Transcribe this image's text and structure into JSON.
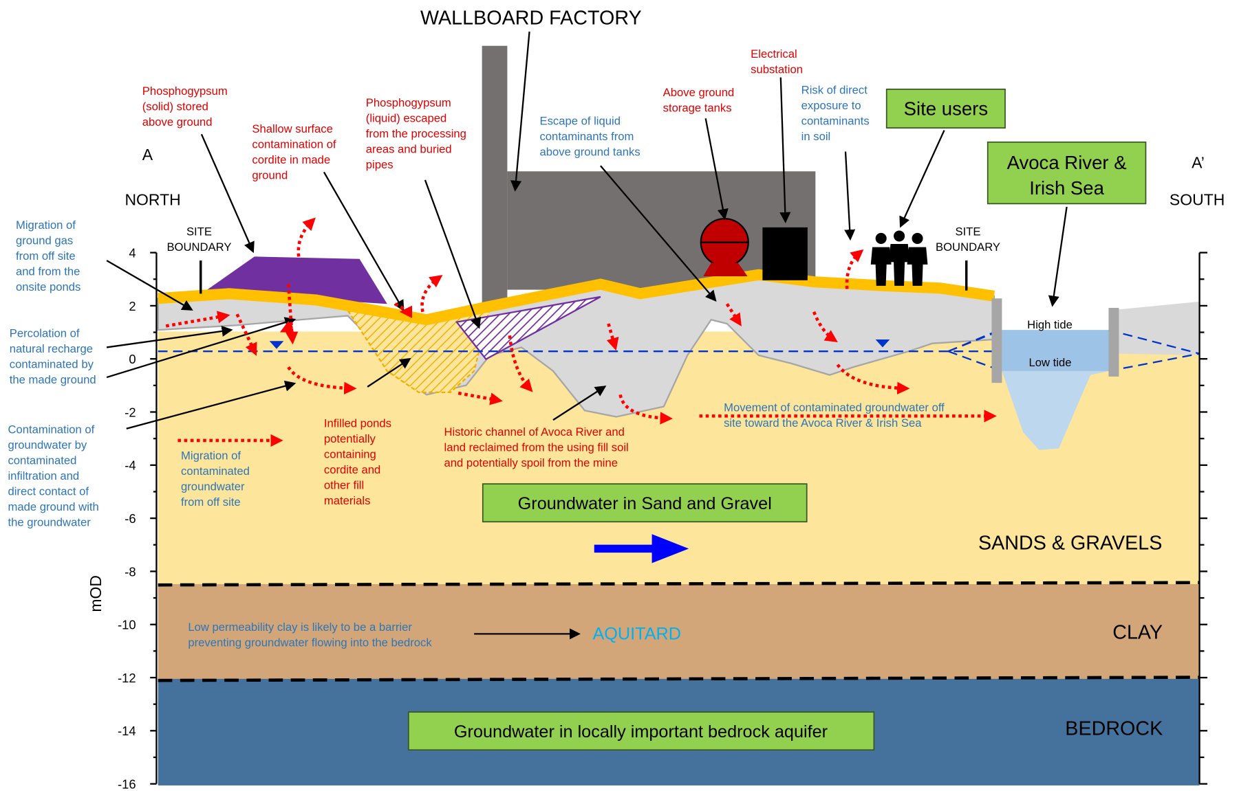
{
  "title": "WALLBOARD FACTORY",
  "labels": {
    "a": {
      "lines": [
        "A"
      ]
    },
    "north": {
      "lines": [
        "NORTH"
      ]
    },
    "a_prime": {
      "lines": [
        "A’"
      ]
    },
    "south": {
      "lines": [
        "SOUTH"
      ]
    },
    "site_boundary_left": {
      "lines": [
        "SITE",
        "BOUNDARY"
      ]
    },
    "site_boundary_right": {
      "lines": [
        "SITE",
        "BOUNDARY"
      ]
    },
    "phosphogypsum_solid": {
      "lines": [
        "Phosphogypsum",
        "(solid)  stored",
        "above ground"
      ]
    },
    "shallow_surface": {
      "lines": [
        "Shallow surface",
        "contamination of",
        "cordite in made",
        "ground"
      ]
    },
    "phosphogypsum_liquid": {
      "lines": [
        "Phosphogypsum",
        "(liquid) escaped",
        "from the processing",
        "areas and buried",
        "pipes"
      ]
    },
    "escape_liquid": {
      "lines": [
        "Escape of liquid",
        "contaminants from",
        "above ground tanks"
      ]
    },
    "storage_tanks": {
      "lines": [
        "Above ground",
        "storage tanks"
      ]
    },
    "substation": {
      "lines": [
        "Electrical",
        "substation"
      ]
    },
    "risk_exposure": {
      "lines": [
        "Risk of direct",
        "exposure to",
        "contaminants",
        "in soil"
      ]
    },
    "site_users": {
      "lines": [
        "Site users"
      ]
    },
    "avoca_river": {
      "lines": [
        "Avoca River &",
        "Irish Sea"
      ]
    },
    "migration_gas": {
      "lines": [
        "Migration of",
        "ground gas",
        "from off site",
        "and from the",
        "onsite ponds"
      ]
    },
    "percolation": {
      "lines": [
        "Percolation of",
        "natural recharge",
        "contaminated by",
        "the made ground"
      ]
    },
    "contamination_groundwater": {
      "lines": [
        "Contamination of",
        "groundwater by",
        "contaminated",
        "infiltration and",
        "direct contact of",
        "made ground with",
        "the groundwater"
      ]
    },
    "migration_groundwater": {
      "lines": [
        "Migration of",
        "contaminated",
        "groundwater",
        "from off site"
      ]
    },
    "infilled_ponds": {
      "lines": [
        "Infilled ponds",
        "potentially",
        "containing",
        "cordite and",
        "other fill",
        "materials"
      ]
    },
    "historic_channel": {
      "lines": [
        "Historic channel of Avoca River and",
        "land reclaimed from the using fill soil",
        "and potentially spoil from the mine"
      ]
    },
    "movement_groundwater": {
      "lines": [
        "Movement of contaminated groundwater off",
        "site toward the Avoca River & Irish Sea"
      ]
    },
    "high_tide": {
      "lines": [
        "High tide"
      ]
    },
    "low_tide": {
      "lines": [
        "Low tide"
      ]
    },
    "groundwater_sand": {
      "lines": [
        "Groundwater in Sand and Gravel"
      ]
    },
    "sands_gravels": {
      "lines": [
        "SANDS & GRAVELS"
      ]
    },
    "low_permeability": {
      "lines": [
        "Low permeability clay is likely to be a barrier",
        "preventing groundwater flowing into the bedrock"
      ]
    },
    "aquitard": {
      "lines": [
        "AQUITARD"
      ]
    },
    "clay": {
      "lines": [
        "CLAY"
      ]
    },
    "bedrock": {
      "lines": [
        "BEDROCK"
      ]
    },
    "groundwater_bedrock": {
      "lines": [
        "Groundwater in locally important bedrock aquifer"
      ]
    }
  },
  "axis": {
    "label": "mOD",
    "lim": [
      -16,
      4
    ],
    "ticks": [
      4,
      2,
      0,
      -2,
      -4,
      -6,
      -8,
      -10,
      -12,
      -14,
      -16
    ]
  }
}
